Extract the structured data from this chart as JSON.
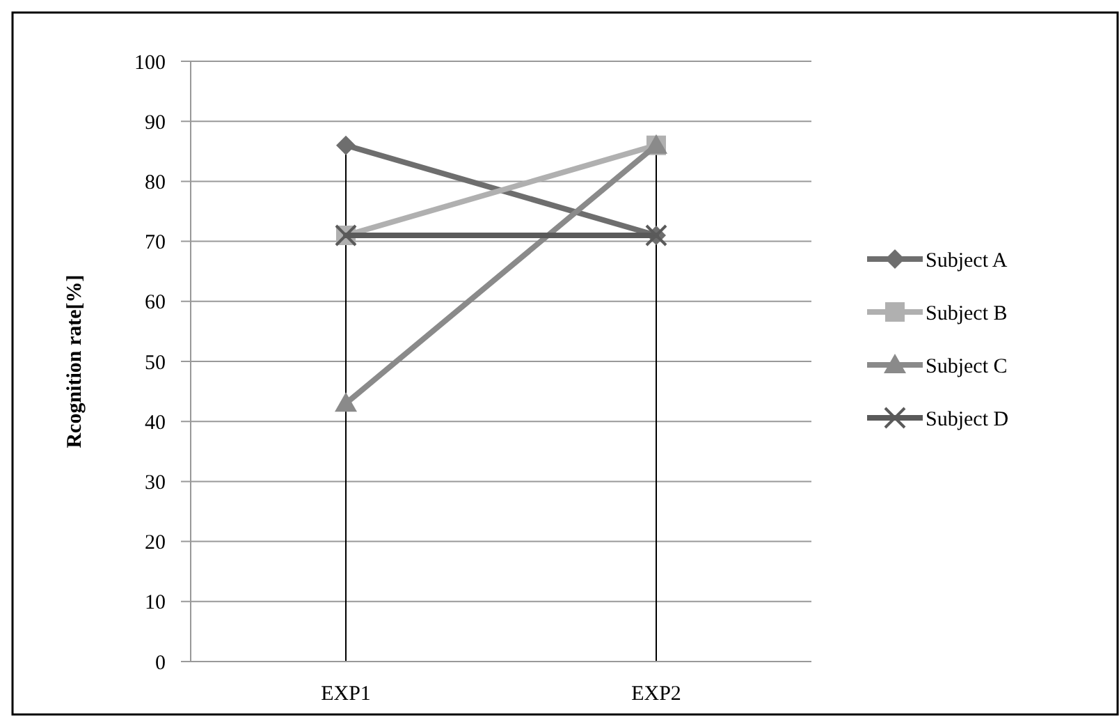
{
  "chart_data": {
    "type": "line",
    "ylabel": "Rcognition rate[%]",
    "categories": [
      "EXP1",
      "EXP2"
    ],
    "series": [
      {
        "name": "Subject A",
        "color": "#6e6e6e",
        "marker": "diamond",
        "values": [
          86,
          71
        ]
      },
      {
        "name": "Subject B",
        "color": "#b0b0b0",
        "marker": "square",
        "values": [
          71,
          86
        ]
      },
      {
        "name": "Subject C",
        "color": "#8a8a8a",
        "marker": "triangle",
        "values": [
          43,
          86
        ]
      },
      {
        "name": "Subject D",
        "color": "#5a5a5a",
        "marker": "cross",
        "values": [
          71,
          71
        ]
      }
    ],
    "ylim": [
      0,
      100
    ],
    "yticks": [
      0,
      10,
      20,
      30,
      40,
      50,
      60,
      70,
      80,
      90,
      100
    ],
    "grid": true,
    "legend": "right"
  }
}
